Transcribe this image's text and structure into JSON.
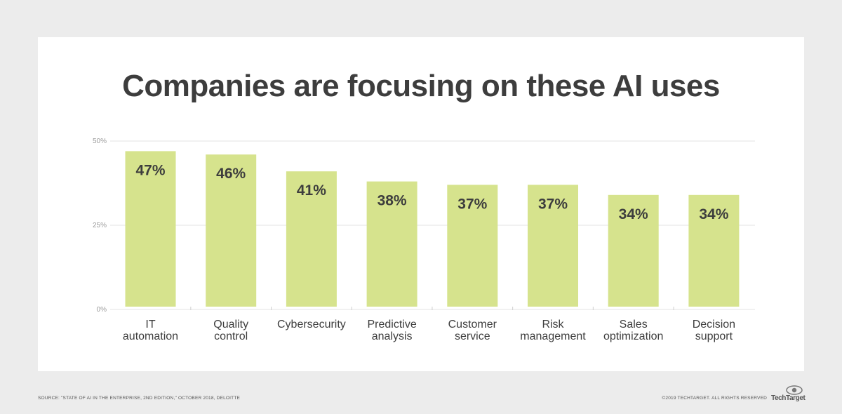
{
  "title": "Companies are focusing on these AI uses",
  "colors": {
    "bar": "#d6e38d",
    "value_label": "#3d3d3d",
    "category_label": "#3d3d3d",
    "tick_label": "#9a9a9a",
    "gridline": "#e3e3e3",
    "background": "#ececec",
    "card": "#ffffff"
  },
  "chart_data": {
    "type": "bar",
    "categories": [
      [
        "IT",
        "automation"
      ],
      [
        "Quality",
        "control"
      ],
      [
        "Cybersecurity"
      ],
      [
        "Predictive",
        "analysis"
      ],
      [
        "Customer",
        "service"
      ],
      [
        "Risk",
        "management"
      ],
      [
        "Sales",
        "optimization"
      ],
      [
        "Decision",
        "support"
      ]
    ],
    "values": [
      47,
      46,
      41,
      38,
      37,
      37,
      34,
      34
    ],
    "value_labels": [
      "47%",
      "46%",
      "41%",
      "38%",
      "37%",
      "37%",
      "34%",
      "34%"
    ],
    "yticks": [
      0,
      25,
      50
    ],
    "ytick_labels": [
      "0%",
      "25%",
      "50%"
    ],
    "ylim": [
      0,
      50
    ],
    "grid": true
  },
  "footer": {
    "source": "SOURCE: \"STATE OF AI IN THE ENTERPRISE, 2ND EDITION,\" OCTOBER 2018, DELOITTE",
    "copyright": "©2019 TECHTARGET. ALL RIGHTS RESERVED",
    "logo_text": "TechTarget"
  }
}
